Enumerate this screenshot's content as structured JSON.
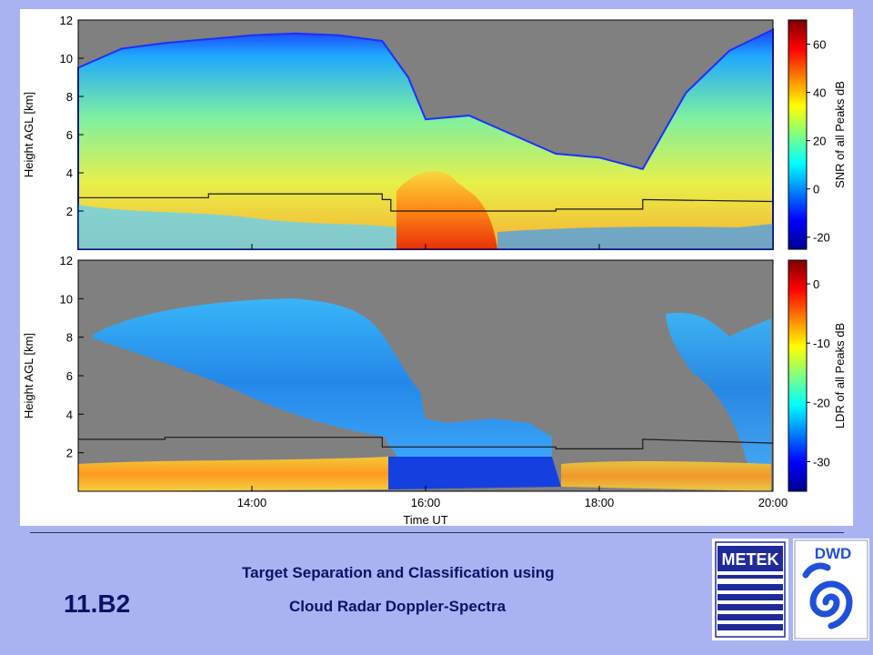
{
  "colors": {
    "slide_background": "#aab3f2",
    "caption_text": "#0e1066",
    "no_signal_gray": "#808080",
    "boundary_line": "#1a1a1a"
  },
  "slide": {
    "id": "11.B2",
    "caption_line1": "Target Separation and Classification using",
    "caption_line2": "Cloud Radar Doppler-Spectra"
  },
  "logos": {
    "metek_text": "METEK",
    "dwd_text": "DWD"
  },
  "chart_data": [
    {
      "type": "heatmap",
      "panel": "top",
      "xlabel": "Time UT",
      "ylabel": "Height AGL [km]",
      "colorbar_label": "SNR of all Peaks dB",
      "colorbar_ticks": [
        60,
        40,
        20,
        0,
        -20
      ],
      "colorbar_range": [
        -25,
        70
      ],
      "colormap": "jet",
      "ylim": [
        0,
        12
      ],
      "yticks": [
        2,
        4,
        6,
        8,
        10,
        12
      ],
      "xlim": [
        12.0,
        20.0
      ],
      "xticks": [
        "14:00",
        "16:00",
        "18:00",
        "20:00"
      ],
      "cloud_top_km": {
        "x": [
          12.0,
          12.5,
          13.0,
          13.5,
          14.0,
          14.5,
          15.0,
          15.5,
          15.8,
          16.0,
          16.5,
          17.0,
          17.5,
          18.0,
          18.5,
          19.0,
          19.5,
          20.0
        ],
        "y": [
          9.5,
          10.5,
          10.8,
          11.0,
          11.2,
          11.3,
          11.2,
          10.9,
          9.0,
          6.8,
          7.0,
          6.0,
          5.0,
          4.8,
          4.2,
          8.2,
          10.4,
          11.5
        ]
      },
      "boundary_line_km": {
        "x": [
          12.0,
          13.5,
          13.5,
          15.5,
          15.5,
          15.6,
          15.6,
          17.5,
          17.5,
          18.5,
          18.5,
          20.0
        ],
        "y": [
          2.7,
          2.7,
          2.9,
          2.9,
          2.6,
          2.6,
          2.0,
          2.0,
          2.1,
          2.1,
          2.6,
          2.5
        ]
      }
    },
    {
      "type": "heatmap",
      "panel": "bottom",
      "xlabel": "Time UT",
      "ylabel": "Height AGL [km]",
      "colorbar_label": "LDR of all Peaks dB",
      "colorbar_ticks": [
        0,
        -10,
        -20,
        -30
      ],
      "colorbar_range": [
        -35,
        4
      ],
      "colormap": "jet",
      "ylim": [
        0,
        12
      ],
      "yticks": [
        2,
        4,
        6,
        8,
        10,
        12
      ],
      "xlim": [
        12.0,
        20.0
      ],
      "xticks": [
        "14:00",
        "16:00",
        "18:00",
        "20:00"
      ],
      "boundary_line_km": {
        "x": [
          12.0,
          13.0,
          13.0,
          15.5,
          15.5,
          17.5,
          17.5,
          18.5,
          18.5,
          20.0
        ],
        "y": [
          2.7,
          2.7,
          2.8,
          2.8,
          2.3,
          2.3,
          2.2,
          2.2,
          2.7,
          2.5
        ]
      }
    }
  ]
}
